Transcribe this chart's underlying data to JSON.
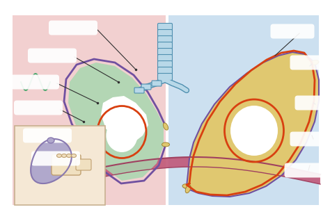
{
  "bg_color": "#ffffff",
  "left_panel_color": "#f2d0d0",
  "right_panel_color": "#cce0f0",
  "lung_green": "#a8d8b0",
  "lung_green2": "#c0e0c8",
  "lung_outline_purple": "#7050a0",
  "lung_outline_orange": "#d84010",
  "chest_wall_yellow": "#e0c870",
  "chest_wall_purple": "#7050a0",
  "diaphragm_color": "#c05878",
  "diaphragm_dark": "#a04060",
  "trachea_light": "#b8d8e8",
  "trachea_dark": "#5090b0",
  "inset_bg": "#f5e8d5",
  "inset_lung_color": "#b0a8cc",
  "inset_lung_edge": "#8878b0",
  "label_line_color": "#303030",
  "white_color": "#ffffff",
  "blue_layer": "#80b0d0",
  "yellow_layer": "#d8c830",
  "figsize": [
    4.74,
    3.18
  ],
  "dpi": 100
}
